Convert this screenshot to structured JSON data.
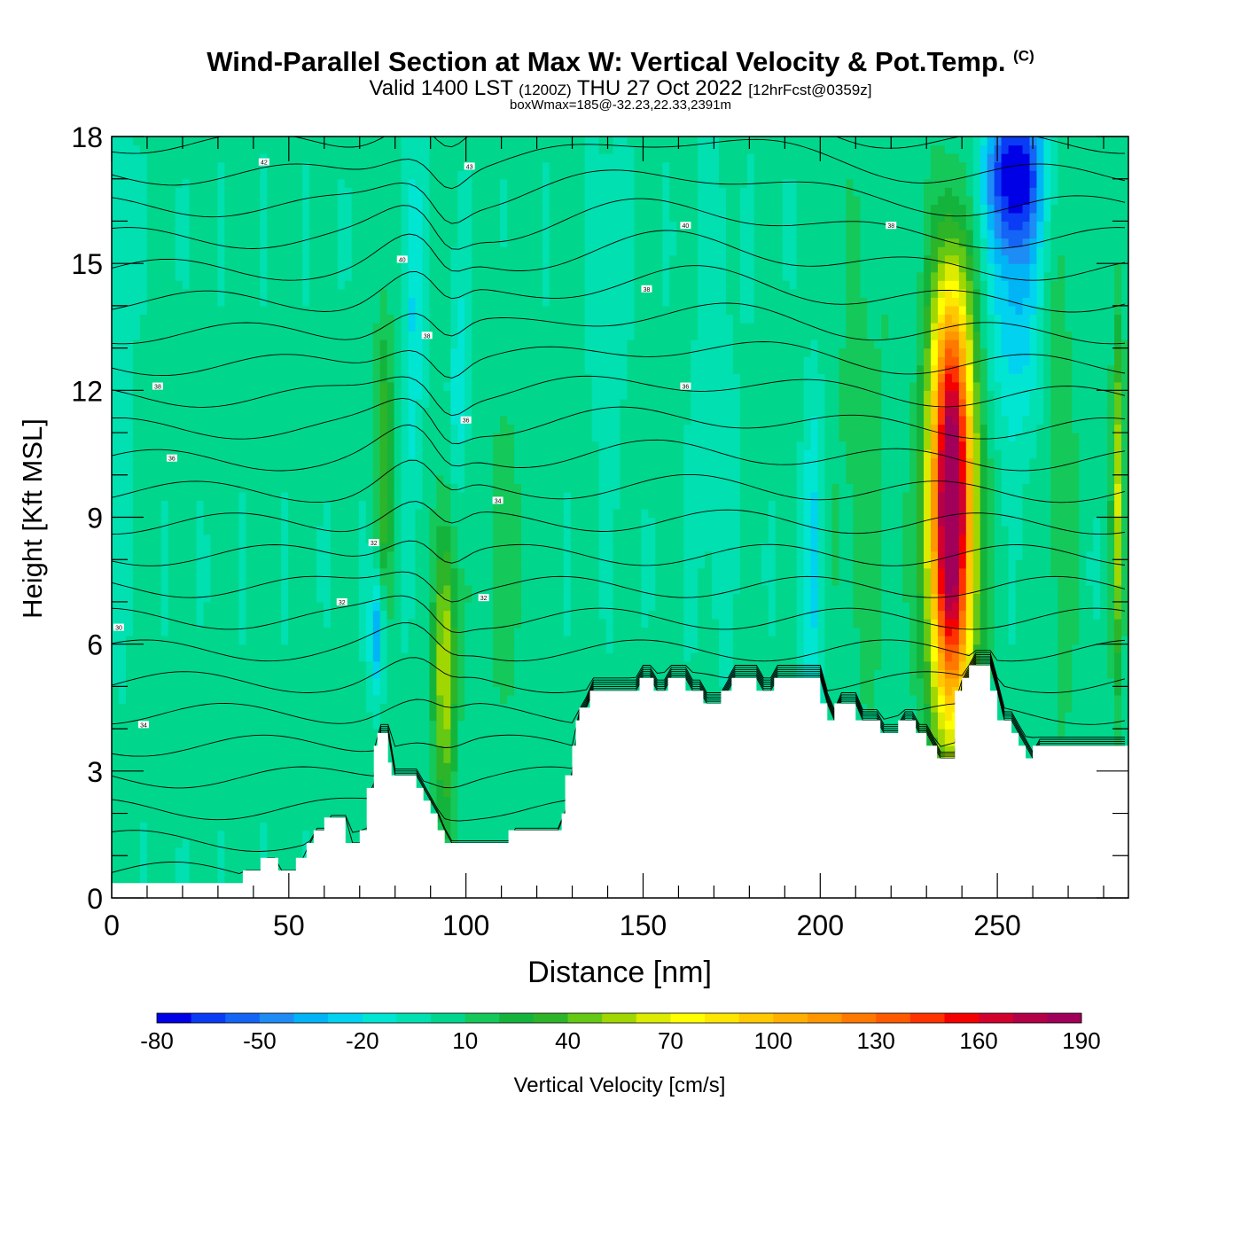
{
  "title": {
    "main": "Wind-Parallel Section at Max W: Vertical Velocity & Pot.Temp.",
    "mark": "(C)",
    "valid_prefix": "Valid 1400 LST",
    "valid_z": "(1200Z)",
    "valid_date": "THU 27 Oct 2022",
    "valid_fcst": "[12hrFcst@0359z]",
    "box_line": "boxWmax=185@-32.23,22.33,2391m"
  },
  "chart_data": {
    "type": "heatmap",
    "xlabel": "Distance [nm]",
    "ylabel": "Height [Kft MSL]",
    "xlim": [
      0,
      287
    ],
    "ylim": [
      0,
      18
    ],
    "x_ticks": [
      0,
      50,
      100,
      150,
      200,
      250
    ],
    "y_ticks": [
      0,
      3,
      6,
      9,
      12,
      15,
      18
    ],
    "colorbar": {
      "label": "Vertical Velocity [cm/s]",
      "tick_labels": [
        "-80",
        "-50",
        "-20",
        "10",
        "40",
        "70",
        "100",
        "130",
        "160",
        "190"
      ],
      "levels": [
        -80,
        -70,
        -60,
        -50,
        -40,
        -30,
        -20,
        -10,
        0,
        10,
        20,
        30,
        40,
        50,
        60,
        70,
        80,
        90,
        100,
        110,
        120,
        130,
        140,
        150,
        160,
        170,
        180,
        190
      ],
      "colors": [
        "#0000e6",
        "#0a3cf5",
        "#1464f5",
        "#1e8cf5",
        "#00b4f5",
        "#00d2f0",
        "#00e6d2",
        "#00e0b0",
        "#00d78c",
        "#14c85a",
        "#14b43c",
        "#2db428",
        "#64c814",
        "#a0d700",
        "#dceb00",
        "#ffff00",
        "#ffe600",
        "#ffc800",
        "#ffaf00",
        "#ff9600",
        "#ff7800",
        "#ff5a00",
        "#ff3200",
        "#f50000",
        "#d2002d",
        "#b40046",
        "#a0005a"
      ]
    },
    "terrain_profile": {
      "distance": [
        0,
        36,
        37,
        40,
        42,
        45,
        47,
        50,
        52,
        55,
        57,
        60,
        62,
        64,
        66,
        68,
        70,
        72,
        74,
        75,
        77,
        78,
        79,
        80,
        84,
        86,
        88,
        90,
        92,
        94,
        96,
        100,
        102,
        104,
        107,
        110,
        112,
        115,
        118,
        120,
        122,
        125,
        127,
        128,
        130,
        131,
        132,
        135,
        140,
        145,
        147,
        149,
        151,
        153,
        155,
        157,
        160,
        162,
        165,
        167,
        170,
        172,
        174,
        175,
        180,
        182,
        185,
        187,
        190,
        195,
        200,
        202,
        204,
        206,
        208,
        210,
        215,
        217,
        220,
        222,
        225,
        227,
        230,
        233,
        236,
        238,
        240,
        242,
        244,
        246,
        248,
        250,
        252,
        254,
        256,
        257,
        258,
        260,
        262,
        265,
        270,
        275,
        287
      ],
      "height_kft": [
        0.35,
        0.35,
        0.65,
        0.65,
        0.95,
        0.95,
        0.65,
        0.65,
        0.95,
        1.3,
        1.6,
        1.9,
        1.9,
        1.9,
        1.3,
        1.3,
        1.6,
        2.6,
        3.6,
        3.9,
        3.9,
        3.2,
        2.9,
        2.9,
        2.9,
        2.6,
        2.3,
        2.0,
        1.6,
        1.3,
        1.3,
        1.3,
        1.3,
        1.3,
        1.3,
        1.3,
        1.6,
        1.6,
        1.6,
        1.6,
        1.6,
        1.6,
        2.0,
        2.9,
        3.6,
        4.2,
        4.5,
        4.9,
        4.9,
        4.9,
        4.9,
        5.2,
        5.2,
        4.9,
        4.9,
        5.2,
        5.2,
        4.9,
        4.9,
        4.6,
        4.6,
        4.9,
        4.9,
        5.2,
        5.2,
        4.9,
        4.9,
        5.2,
        5.2,
        5.2,
        4.6,
        4.2,
        4.6,
        4.6,
        4.6,
        4.2,
        4.2,
        3.9,
        3.9,
        4.2,
        4.2,
        3.9,
        3.6,
        3.3,
        3.3,
        4.9,
        5.2,
        5.5,
        5.5,
        5.5,
        4.9,
        4.2,
        4.2,
        3.9,
        3.6,
        3.6,
        3.3,
        3.6,
        3.6,
        3.6,
        3.6,
        3.6,
        3.6
      ]
    },
    "w_features": [
      {
        "x": 237,
        "y": 8.5,
        "sx": 4.5,
        "sy": 3.2,
        "w": 185
      },
      {
        "x": 237,
        "y": 12.5,
        "sx": 4.0,
        "sy": 2.5,
        "w": 60
      },
      {
        "x": 94,
        "y": 5.5,
        "sx": 2.2,
        "sy": 2.4,
        "w": 60
      },
      {
        "x": 77,
        "y": 10.5,
        "sx": 1.8,
        "sy": 2.5,
        "w": 35
      },
      {
        "x": 284,
        "y": 9.5,
        "sx": 1.2,
        "sy": 3.0,
        "w": 55
      },
      {
        "x": 85,
        "y": 14.0,
        "sx": 2.0,
        "sy": 3.0,
        "w": -25
      },
      {
        "x": 98,
        "y": 12.0,
        "sx": 2.0,
        "sy": 2.0,
        "w": -20
      },
      {
        "x": 255,
        "y": 17.2,
        "sx": 6.0,
        "sy": 1.2,
        "w": -70
      },
      {
        "x": 255,
        "y": 14.5,
        "sx": 5.0,
        "sy": 2.5,
        "w": -35
      },
      {
        "x": 198,
        "y": 8.0,
        "sx": 2.0,
        "sy": 3.0,
        "w": -25
      },
      {
        "x": 75,
        "y": 6.2,
        "sx": 1.5,
        "sy": 1.0,
        "w": -45
      },
      {
        "x": 140,
        "y": 14.0,
        "sx": 3.0,
        "sy": 3.0,
        "w": -12
      },
      {
        "x": 2,
        "y": 14.0,
        "sx": 2.5,
        "sy": 5.0,
        "w": -12
      },
      {
        "x": 212,
        "y": 10.0,
        "sx": 6.0,
        "sy": 5.0,
        "w": 12
      },
      {
        "x": 170,
        "y": 12.0,
        "sx": 4.0,
        "sy": 4.0,
        "w": -12
      },
      {
        "x": 110,
        "y": 8.0,
        "sx": 6.0,
        "sy": 3.0,
        "w": 12
      },
      {
        "x": 268,
        "y": 10.0,
        "sx": 3.0,
        "sy": 5.0,
        "w": 15
      }
    ],
    "theta_contours": {
      "labels": [
        {
          "text": "42",
          "x": 43,
          "y": 17.4
        },
        {
          "text": "43",
          "x": 101,
          "y": 17.3
        },
        {
          "text": "40",
          "x": 162,
          "y": 15.9
        },
        {
          "text": "38",
          "x": 220,
          "y": 15.9
        },
        {
          "text": "40",
          "x": 82,
          "y": 15.1
        },
        {
          "text": "38",
          "x": 151,
          "y": 14.4
        },
        {
          "text": "38",
          "x": 89,
          "y": 13.3
        },
        {
          "text": "38",
          "x": 13,
          "y": 12.1
        },
        {
          "text": "36",
          "x": 162,
          "y": 12.1
        },
        {
          "text": "36",
          "x": 100,
          "y": 11.3
        },
        {
          "text": "36",
          "x": 17,
          "y": 10.4
        },
        {
          "text": "34",
          "x": 109,
          "y": 9.4
        },
        {
          "text": "32",
          "x": 74,
          "y": 8.4
        },
        {
          "text": "32",
          "x": 105,
          "y": 7.1
        },
        {
          "text": "32",
          "x": 65,
          "y": 7.0
        },
        {
          "text": "30",
          "x": 2,
          "y": 6.4
        },
        {
          "text": "34",
          "x": 9,
          "y": 4.1
        }
      ]
    }
  }
}
